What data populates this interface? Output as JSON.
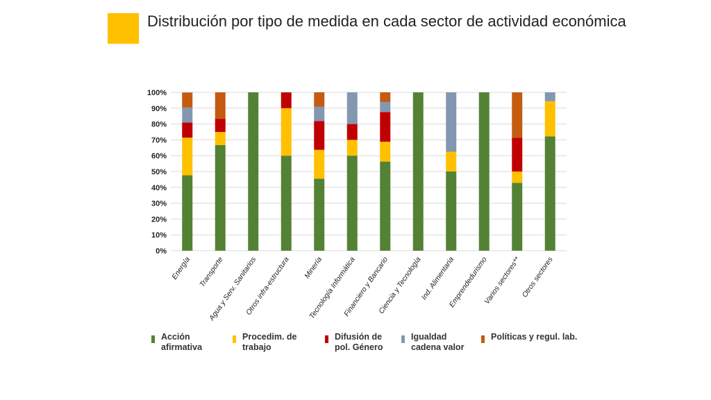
{
  "slide": {
    "title": "Distribución por tipo de medida en cada sector de actividad económica",
    "accent_color": "#ffc000"
  },
  "chart_data": {
    "type": "bar",
    "stacked": true,
    "title": "",
    "xlabel": "",
    "ylabel": "",
    "ylim": [
      0,
      100
    ],
    "yticks": [
      0,
      10,
      20,
      30,
      40,
      50,
      60,
      70,
      80,
      90,
      100
    ],
    "ytick_suffix": "%",
    "grid": true,
    "legend_position": "bottom",
    "categories": [
      "Energía",
      "Transporte",
      "Agua y Serv. Sanitarios",
      "Otros infra-estructura",
      "Minería",
      "Tecnología Informática",
      "Financiero y Bancario",
      "Ciencia y Tecnología",
      "Ind. Alimentaria",
      "Emprendedurismo",
      "Varios sectores**",
      "Otros sectores"
    ],
    "series": [
      {
        "name": "Acción afirmativa",
        "legend_lines": [
          "Acción",
          "afirmativa"
        ],
        "color": "#548235",
        "values": [
          47.6,
          66.7,
          100,
          60,
          45.5,
          60,
          56.3,
          100,
          50,
          100,
          42.9,
          72.2
        ]
      },
      {
        "name": "Procedim. de trabajo",
        "legend_lines": [
          "Procedim. de",
          "trabajo"
        ],
        "color": "#ffc000",
        "values": [
          23.8,
          8.3,
          0,
          30,
          18.2,
          10,
          12.5,
          0,
          12.5,
          0,
          7.1,
          22.2
        ]
      },
      {
        "name": "Difusión de pol. Género",
        "legend_lines": [
          "Difusión de",
          "pol. Género"
        ],
        "color": "#c00000",
        "values": [
          9.5,
          8.3,
          0,
          10,
          18.2,
          10,
          18.8,
          0,
          0,
          0,
          21.4,
          0
        ]
      },
      {
        "name": "Igualdad cadena valor",
        "legend_lines": [
          "Igualdad",
          "cadena valor"
        ],
        "color": "#8497b0",
        "values": [
          9.5,
          0,
          0,
          0,
          9.1,
          20,
          6.3,
          0,
          37.5,
          0,
          0,
          5.6
        ]
      },
      {
        "name": "Políticas y regul. lab.",
        "legend_lines": [
          "Políticas y regul. lab."
        ],
        "color": "#c55a11",
        "values": [
          9.5,
          16.7,
          0,
          0,
          9.1,
          0,
          6.3,
          0,
          0,
          0,
          28.6,
          0
        ]
      }
    ]
  }
}
